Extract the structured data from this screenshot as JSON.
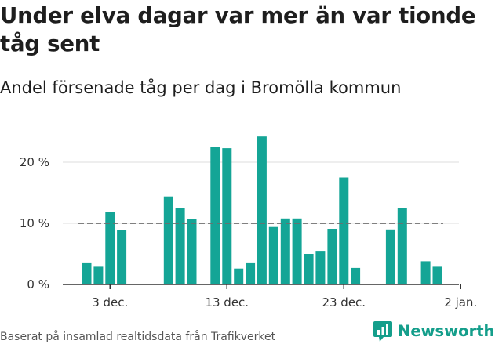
{
  "title": "Under elva dagar var mer än var tionde tåg sent",
  "subtitle": "Andel försenade tåg per dag i Bromölla kommun",
  "source": "Baserat på insamlad realtidsdata från Trafikverket",
  "brand": {
    "name": "Newsworthy",
    "color": "#149e8b",
    "icon": "newsworthy-logo-icon"
  },
  "colors": {
    "bar": "#14a596",
    "reference_line": "#6e6e6e",
    "grid": "#dddddd",
    "axis": "#333333"
  },
  "chart_data": {
    "type": "bar",
    "x_axis": {
      "type": "date",
      "range": [
        "2022-11-30",
        "2023-01-02"
      ],
      "ticks": [
        "3 dec.",
        "13 dec.",
        "23 dec.",
        "2 jan."
      ]
    },
    "y_axis": {
      "unit": "%",
      "ylim": [
        0,
        25
      ],
      "ticks": [
        "0 %",
        "10 %",
        "20 %"
      ],
      "grid": true
    },
    "reference_line": {
      "y": 10,
      "style": "dashed"
    },
    "x": [
      "2022-12-01",
      "2022-12-02",
      "2022-12-03",
      "2022-12-04",
      "2022-12-08",
      "2022-12-09",
      "2022-12-10",
      "2022-12-12",
      "2022-12-13",
      "2022-12-14",
      "2022-12-15",
      "2022-12-16",
      "2022-12-17",
      "2022-12-18",
      "2022-12-19",
      "2022-12-20",
      "2022-12-21",
      "2022-12-22",
      "2022-12-23",
      "2022-12-24",
      "2022-12-27",
      "2022-12-28",
      "2022-12-30",
      "2022-12-31"
    ],
    "values": [
      3.6,
      2.9,
      11.9,
      8.9,
      14.4,
      12.5,
      10.7,
      22.5,
      22.3,
      2.6,
      3.6,
      24.2,
      9.4,
      10.8,
      10.8,
      5.0,
      5.5,
      9.1,
      17.5,
      2.7,
      9.0,
      12.5,
      3.8,
      2.9
    ]
  }
}
